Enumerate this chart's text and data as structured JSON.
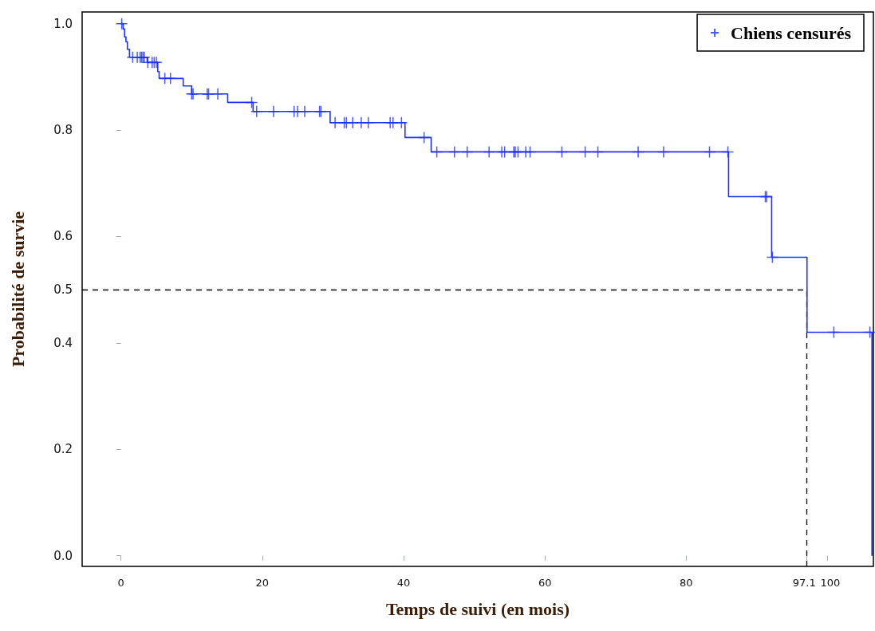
{
  "chart_data": {
    "type": "step",
    "xlabel": "Temps de suivi (en mois)",
    "ylabel": "Probabilité de survie",
    "xlim": [
      -5.5,
      106.5
    ],
    "ylim": [
      -0.02,
      1.022
    ],
    "xticks": [
      0,
      20,
      40,
      60,
      80,
      97.1,
      100
    ],
    "yticks": [
      {
        "value": 0,
        "label": "0.0"
      },
      0.2,
      0.4,
      0.5,
      0.6,
      0.8,
      {
        "value": 1,
        "label": "1.0"
      }
    ],
    "series": [
      {
        "type": "step",
        "color": "#1f2fff",
        "marker": "none",
        "x": [
          0,
          0.3,
          0.5,
          0.7,
          0.9,
          1.2,
          3.7,
          5.2,
          5.4,
          8.8,
          10.0,
          15.1,
          18.7,
          29.6,
          40.2,
          43.9,
          86.0,
          92.1,
          97.1,
          106.3
        ],
        "values": [
          1.0,
          0.99,
          0.975,
          0.966,
          0.952,
          0.937,
          0.927,
          0.91,
          0.897,
          0.883,
          0.868,
          0.852,
          0.835,
          0.814,
          0.786,
          0.759,
          0.675,
          0.561,
          0.42,
          0.0
        ]
      },
      {
        "type": "scatter",
        "name": "Chiens censurés",
        "color": "#1f2fff",
        "marker": "cross",
        "x": [
          0.1,
          1.65,
          2.3,
          2.7,
          2.9,
          3.1,
          3.3,
          3.8,
          4.4,
          4.7,
          5.0,
          6.2,
          7.0,
          10.0,
          10.2,
          12.2,
          12.4,
          13.7,
          18.5,
          19.2,
          21.6,
          24.5,
          25.0,
          26.0,
          28.1,
          28.3,
          30.3,
          31.6,
          31.9,
          32.8,
          34.0,
          35.0,
          38.1,
          38.5,
          39.7,
          42.9,
          44.7,
          47.2,
          49.0,
          52.1,
          53.9,
          54.3,
          55.6,
          55.8,
          56.2,
          57.3,
          57.9,
          62.4,
          65.7,
          67.5,
          73.2,
          76.8,
          83.3,
          85.9,
          91.2,
          91.4,
          92.2,
          100.9,
          106.0
        ],
        "values": [
          1.0,
          0.937,
          0.937,
          0.937,
          0.937,
          0.937,
          0.937,
          0.927,
          0.927,
          0.927,
          0.927,
          0.897,
          0.897,
          0.868,
          0.868,
          0.868,
          0.868,
          0.868,
          0.852,
          0.835,
          0.835,
          0.835,
          0.835,
          0.835,
          0.835,
          0.835,
          0.814,
          0.814,
          0.814,
          0.814,
          0.814,
          0.814,
          0.814,
          0.814,
          0.814,
          0.786,
          0.759,
          0.759,
          0.759,
          0.759,
          0.759,
          0.759,
          0.759,
          0.759,
          0.759,
          0.759,
          0.759,
          0.759,
          0.759,
          0.759,
          0.759,
          0.759,
          0.759,
          0.759,
          0.675,
          0.675,
          0.561,
          0.42,
          0.42
        ]
      }
    ],
    "ref_lines": [
      {
        "axis": "y",
        "value": 0.5,
        "color": "#000000",
        "line_style": "dashed"
      },
      {
        "axis": "x",
        "value": 97.1,
        "color": "#000000",
        "line_style": "dashed"
      }
    ],
    "grid": false,
    "legend": "top right"
  }
}
